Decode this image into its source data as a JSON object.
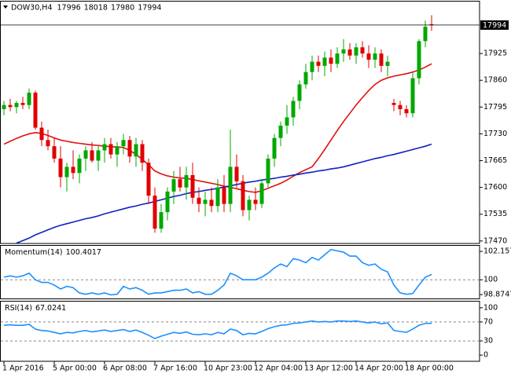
{
  "chart_data": [
    {
      "type": "candlestick",
      "title": "DOW30,H4",
      "open": [
        17790,
        17800,
        17795,
        17805,
        17800,
        17830,
        17745,
        17715,
        17700,
        17670,
        17625,
        17650,
        17635,
        17670,
        17690,
        17665,
        17690,
        17705,
        17680,
        17700,
        17715,
        17675,
        17705,
        17660,
        17580,
        17500,
        17540,
        17590,
        17620,
        17600,
        17630,
        17575,
        17560,
        17570,
        17555,
        17600,
        17560,
        17650,
        17615,
        17545,
        17570,
        17560,
        17610,
        17670,
        17720,
        17750,
        17770,
        17810,
        17850,
        17880,
        17905,
        17895,
        17915,
        17900,
        17925,
        17935,
        17920,
        17940,
        17925,
        17910,
        17925,
        17895,
        17805,
        17800,
        17790,
        17780,
        17865,
        17955,
        17996
      ],
      "high": [
        17810,
        17815,
        17810,
        17820,
        17840,
        17835,
        17760,
        17740,
        17720,
        17700,
        17660,
        17690,
        17680,
        17700,
        17710,
        17700,
        17720,
        17720,
        17710,
        17730,
        17725,
        17720,
        17715,
        17670,
        17600,
        17560,
        17600,
        17640,
        17650,
        17650,
        17660,
        17600,
        17590,
        17600,
        17620,
        17630,
        17740,
        17680,
        17630,
        17580,
        17600,
        17620,
        17680,
        17730,
        17760,
        17800,
        17820,
        17860,
        17900,
        17920,
        17920,
        17930,
        17935,
        17940,
        17960,
        17950,
        17950,
        17955,
        17945,
        17940,
        17935,
        17920,
        17815,
        17810,
        17800,
        17880,
        17960,
        18005,
        18018
      ],
      "low": [
        17775,
        17785,
        17780,
        17790,
        17790,
        17740,
        17700,
        17690,
        17660,
        17600,
        17590,
        17620,
        17610,
        17640,
        17660,
        17640,
        17660,
        17670,
        17650,
        17680,
        17660,
        17650,
        17640,
        17560,
        17490,
        17490,
        17520,
        17560,
        17590,
        17570,
        17560,
        17540,
        17530,
        17540,
        17540,
        17540,
        17540,
        17600,
        17530,
        17520,
        17545,
        17550,
        17600,
        17650,
        17700,
        17730,
        17750,
        17790,
        17840,
        17860,
        17880,
        17870,
        17880,
        17890,
        17905,
        17910,
        17900,
        17915,
        17890,
        17890,
        17880,
        17870,
        17785,
        17775,
        17770,
        17770,
        17850,
        17940,
        17980
      ],
      "close": [
        17800,
        17795,
        17805,
        17800,
        17830,
        17745,
        17715,
        17700,
        17670,
        17625,
        17650,
        17635,
        17670,
        17690,
        17665,
        17690,
        17705,
        17680,
        17700,
        17715,
        17675,
        17705,
        17660,
        17580,
        17500,
        17540,
        17590,
        17620,
        17600,
        17630,
        17575,
        17560,
        17570,
        17555,
        17600,
        17560,
        17650,
        17615,
        17545,
        17570,
        17560,
        17610,
        17670,
        17720,
        17750,
        17770,
        17810,
        17850,
        17880,
        17905,
        17895,
        17915,
        17900,
        17925,
        17935,
        17920,
        17940,
        17925,
        17910,
        17925,
        17895,
        17905,
        17800,
        17790,
        17780,
        17865,
        17955,
        17990,
        17994
      ],
      "up_color": "#00a800",
      "down_color": "#e00000",
      "overlays": [
        {
          "color": "#e01010",
          "values": [
            17705,
            17712,
            17719,
            17725,
            17730,
            17733,
            17731,
            17726,
            17720,
            17715,
            17712,
            17709,
            17707,
            17705,
            17703,
            17702,
            17700,
            17699,
            17698,
            17697,
            17690,
            17680,
            17668,
            17655,
            17640,
            17633,
            17628,
            17625,
            17623,
            17622,
            17619,
            17616,
            17613,
            17610,
            17607,
            17603,
            17600,
            17597,
            17593,
            17590,
            17588,
            17592,
            17598,
            17604,
            17610,
            17618,
            17627,
            17636,
            17643,
            17650,
            17670,
            17692,
            17715,
            17738,
            17760,
            17780,
            17800,
            17818,
            17835,
            17850,
            17860,
            17866,
            17870,
            17873,
            17876,
            17880,
            17885,
            17892,
            17900
          ]
        },
        {
          "color": "#1020c0",
          "values": [
            null,
            null,
            17465,
            17471,
            17477,
            17485,
            17491,
            17497,
            17503,
            17508,
            17512,
            17516,
            17520,
            17524,
            17527,
            17531,
            17536,
            17540,
            17544,
            17548,
            17552,
            17555,
            17559,
            17562,
            17566,
            17570,
            17574,
            17578,
            17581,
            17585,
            17588,
            17590,
            17593,
            17595,
            17598,
            17601,
            17604,
            17607,
            17610,
            17613,
            17615,
            17618,
            17620,
            17622,
            17625,
            17627,
            17630,
            17632,
            17635,
            17637,
            17640,
            17642,
            17645,
            17647,
            17650,
            17654,
            17658,
            17662,
            17666,
            17670,
            17673,
            17677,
            17680,
            17684,
            17688,
            17692,
            17696,
            17700,
            17705
          ]
        }
      ],
      "ylim": [
        17464,
        18051
      ],
      "yticks": [
        17470,
        17535,
        17600,
        17665,
        17730,
        17795,
        17860,
        17925
      ],
      "xlim": [
        -0.625,
        75.625
      ],
      "xticks": [
        {
          "value": 0,
          "label": "1 Apr 2016"
        },
        {
          "value": 8,
          "label": "5 Apr 00:00"
        },
        {
          "value": 16,
          "label": "6 Apr 08:00"
        },
        {
          "value": 24,
          "label": "7 Apr 16:00"
        },
        {
          "value": 32,
          "label": "10 Apr 23:00"
        },
        {
          "value": 40,
          "label": "12 Apr 04:00"
        },
        {
          "value": 48,
          "label": "13 Apr 12:00"
        },
        {
          "value": 56,
          "label": "14 Apr 20:00"
        },
        {
          "value": 64,
          "label": "18 Apr 00:00"
        }
      ]
    },
    {
      "type": "line",
      "title": "Momentum(14)",
      "color": "#1e8fff",
      "values": [
        100.2,
        100.3,
        100.2,
        100.3,
        100.5,
        100.0,
        99.8,
        99.8,
        99.6,
        99.3,
        99.5,
        99.4,
        99.0,
        98.9,
        99.0,
        98.9,
        99.0,
        98.85,
        98.9,
        99.5,
        99.3,
        99.4,
        99.2,
        98.9,
        99.0,
        99.0,
        99.1,
        99.2,
        99.2,
        99.3,
        99.0,
        99.1,
        98.9,
        98.9,
        99.2,
        99.6,
        100.5,
        100.3,
        100.0,
        100.0,
        100.0,
        100.2,
        100.5,
        100.9,
        101.2,
        101.0,
        101.6,
        101.5,
        101.3,
        101.7,
        101.5,
        101.9,
        102.3,
        102.2,
        102.1,
        101.8,
        101.8,
        101.3,
        101.1,
        101.2,
        100.8,
        100.6,
        99.6,
        99.0,
        98.9,
        98.95,
        99.6,
        100.2,
        100.4017
      ],
      "ylim": [
        98.52,
        102.58
      ],
      "yticks": [
        98.8747,
        100,
        102.1572
      ]
    },
    {
      "type": "line",
      "title": "RSI(14)",
      "color": "#1e8fff",
      "values": [
        63,
        64,
        63,
        63,
        65,
        55,
        52,
        51,
        48,
        45,
        48,
        47,
        50,
        52,
        49,
        51,
        53,
        50,
        52,
        54,
        50,
        53,
        48,
        42,
        35,
        40,
        44,
        48,
        46,
        49,
        44,
        43,
        45,
        43,
        48,
        45,
        55,
        52,
        43,
        46,
        45,
        50,
        56,
        60,
        63,
        64,
        67,
        68,
        70,
        72,
        70,
        71,
        70,
        72,
        72,
        71,
        72,
        70,
        68,
        70,
        66,
        68,
        52,
        50,
        48,
        55,
        63,
        67,
        67.0241
      ],
      "ylim": [
        -13,
        113
      ],
      "yticks": [
        0,
        30,
        70,
        100
      ]
    }
  ]
}
